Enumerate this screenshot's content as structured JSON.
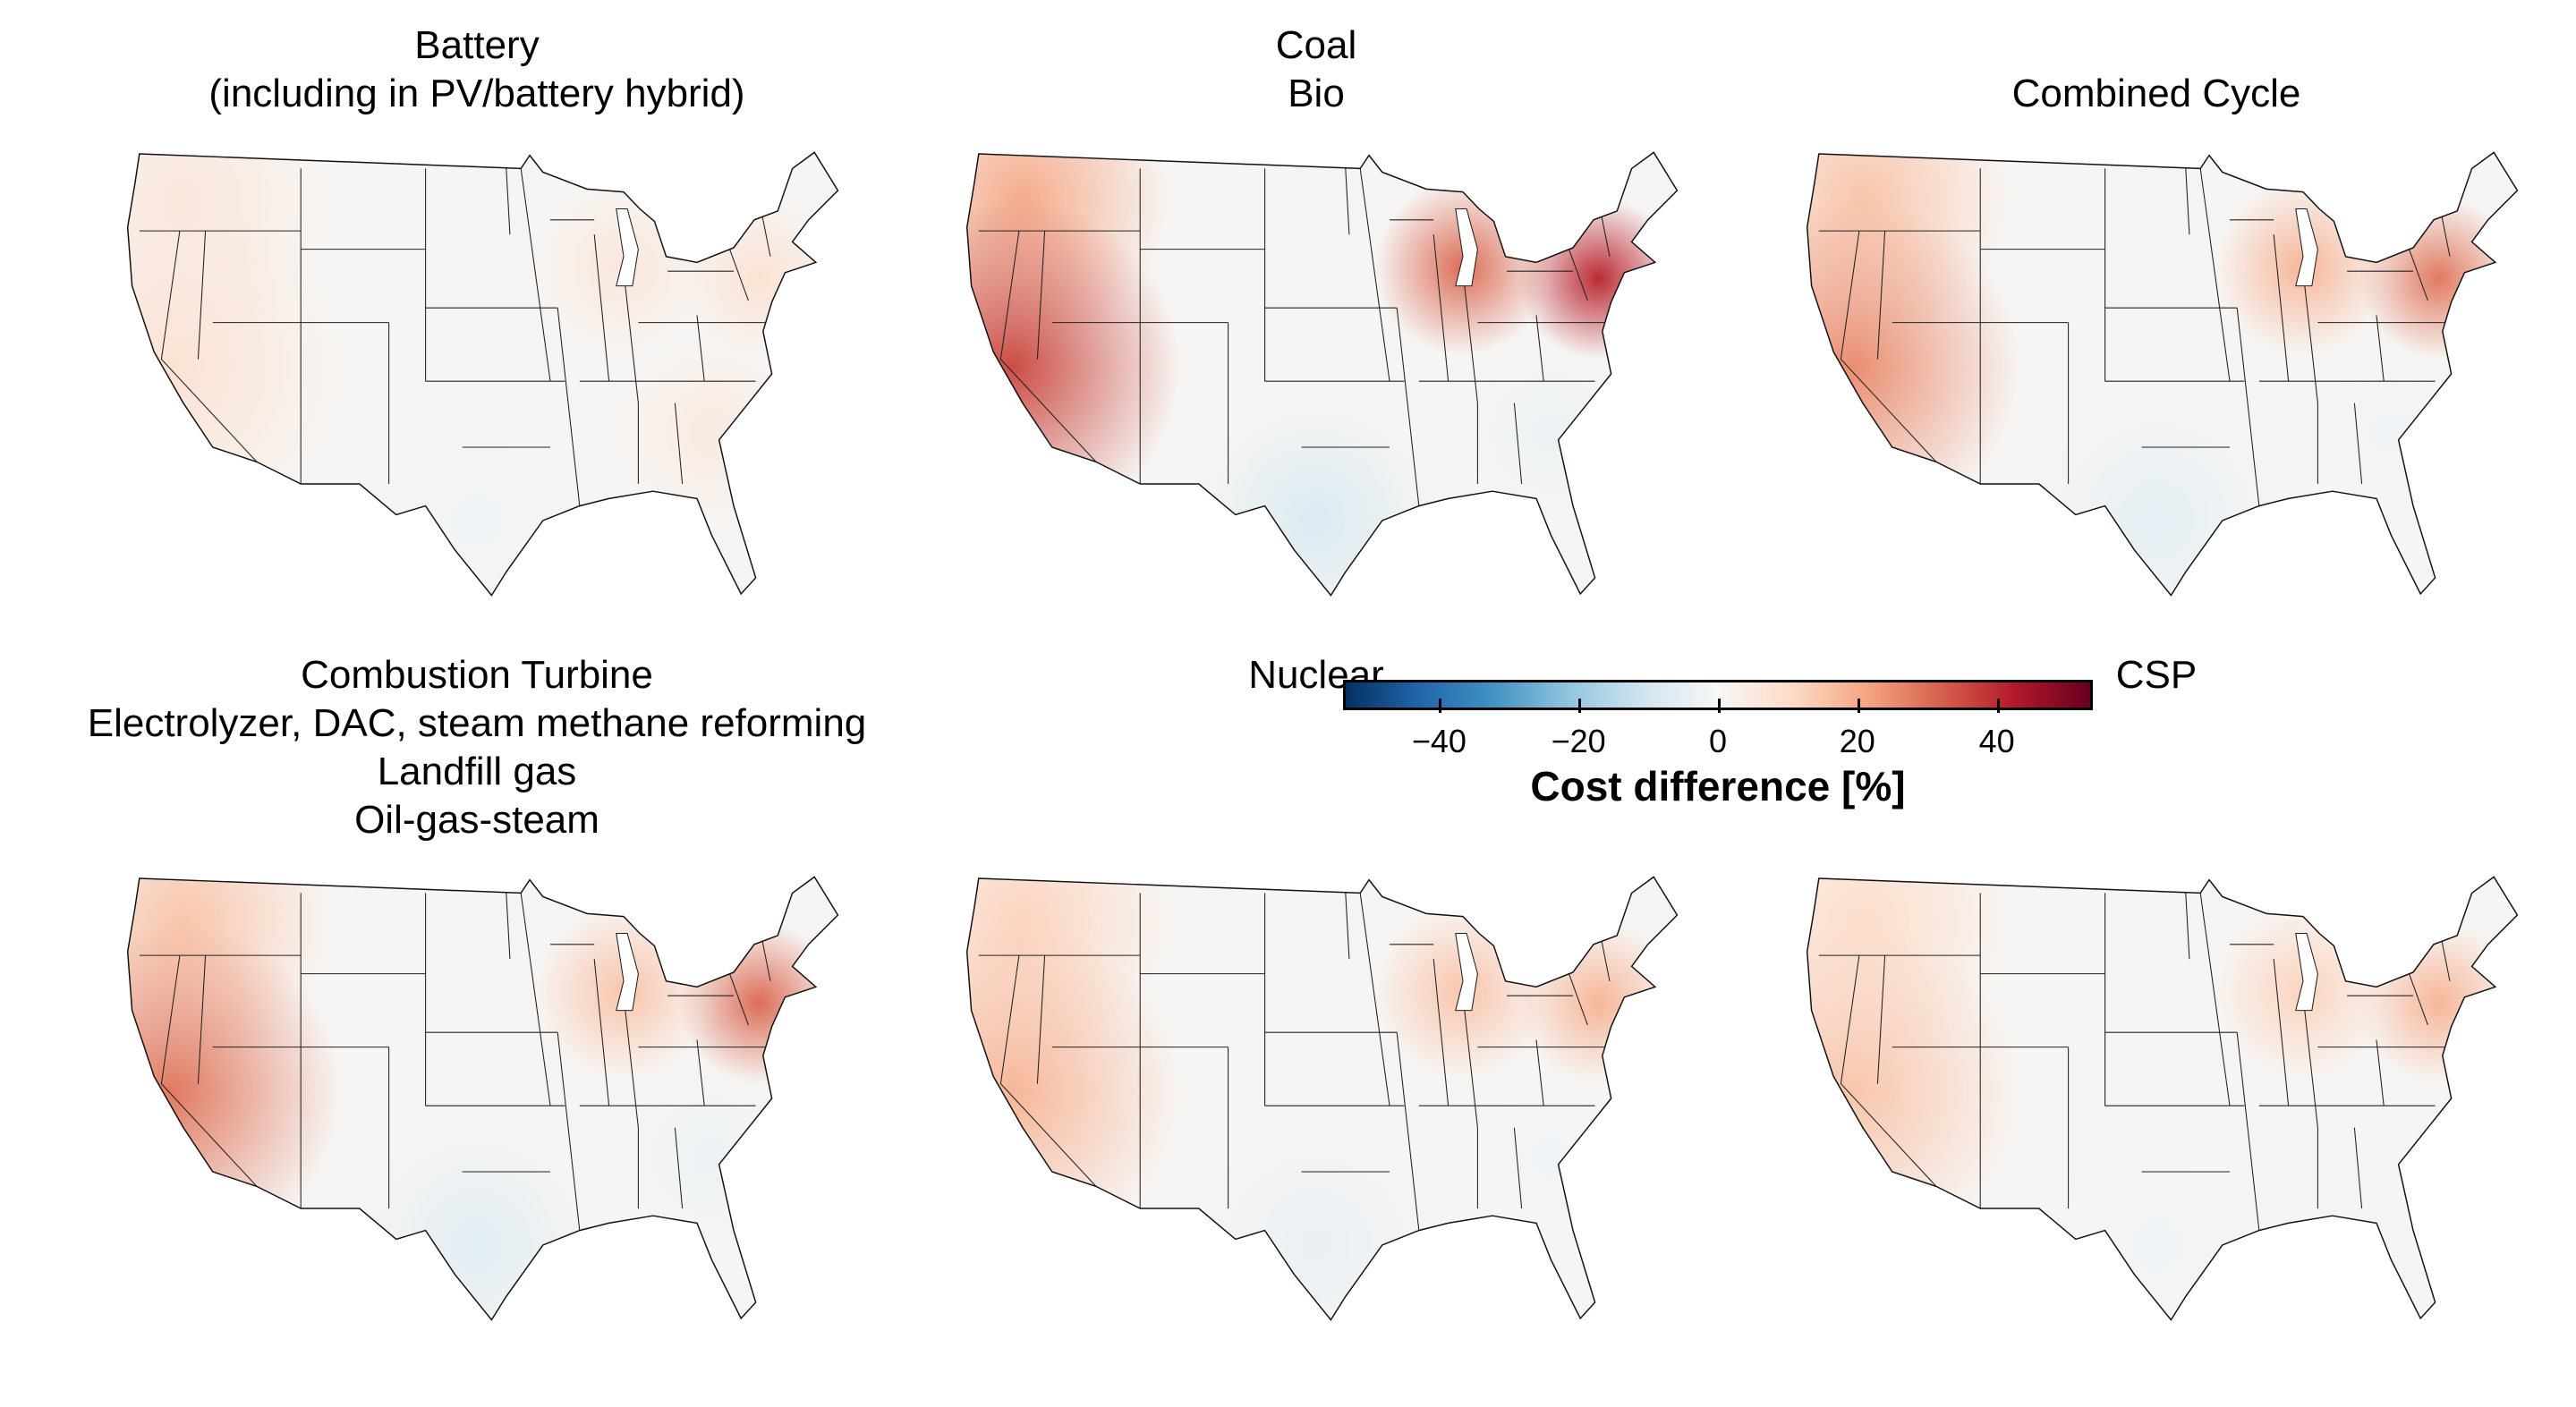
{
  "chart_data": {
    "type": "heatmap",
    "subtype": "choropleth-maps",
    "region": "Contiguous United States",
    "colorbar": {
      "label": "Cost difference [%]",
      "range": [
        -53.4,
        53.4
      ],
      "ticks": [
        -40,
        -20,
        0,
        20,
        40
      ],
      "tick_labels": [
        "−40",
        "−20",
        "0",
        "20",
        "40"
      ],
      "colormap": "RdBu_r"
    },
    "panels": [
      {
        "title_lines": [
          "Battery",
          "(including in PV/battery hybrid)"
        ],
        "values": {
          "pacific_northwest": 6,
          "california_west": 8,
          "northeast": 8,
          "chicago_midwest": 6,
          "texas": -2,
          "southeast": 5
        }
      },
      {
        "title_lines": [
          "Coal",
          "Bio"
        ],
        "values": {
          "pacific_northwest": 20,
          "california_west": 35,
          "northeast": 40,
          "chicago_midwest": 30,
          "texas": -8,
          "southeast": -3
        }
      },
      {
        "title_lines": [
          "Combined Cycle"
        ],
        "values": {
          "pacific_northwest": 15,
          "california_west": 25,
          "northeast": 28,
          "chicago_midwest": 18,
          "texas": -5,
          "southeast": -2
        }
      },
      {
        "title_lines": [
          "Combustion Turbine",
          "Electrolyzer, DAC, steam methane reforming",
          "Landfill gas",
          "Oil-gas-steam"
        ],
        "values": {
          "pacific_northwest": 15,
          "california_west": 28,
          "northeast": 30,
          "chicago_midwest": 15,
          "texas": -6,
          "southeast": -3
        }
      },
      {
        "title_lines": [
          "Nuclear"
        ],
        "values": {
          "pacific_northwest": 12,
          "california_west": 18,
          "northeast": 18,
          "chicago_midwest": 15,
          "texas": -4,
          "southeast": -2
        }
      },
      {
        "title_lines": [
          "CSP"
        ],
        "values": {
          "pacific_northwest": 10,
          "california_west": 15,
          "northeast": 18,
          "chicago_midwest": 12,
          "texas": -2,
          "southeast": -1
        }
      }
    ]
  }
}
